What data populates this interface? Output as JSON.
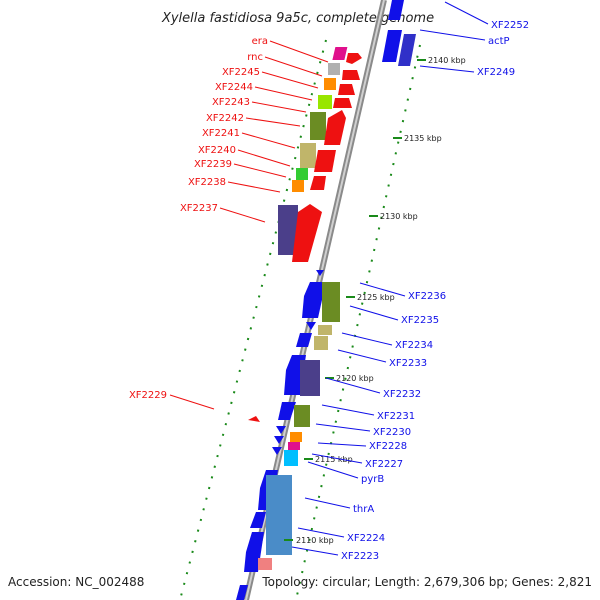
{
  "title": "Xylella fastidiosa 9a5c, complete genome",
  "footer": {
    "accession": "Accession: NC_002488",
    "summary": "Topology: circular; Length: 2,679,306 bp; Genes: 2,821"
  },
  "kbp_marks": [
    "2140 kbp",
    "2135 kbp",
    "2130 kbp",
    "2125 kbp",
    "2120 kbp",
    "2115 kbp",
    "2110 kbp"
  ],
  "left_labels": [
    "era",
    "rnc",
    "XF2245",
    "XF2244",
    "XF2243",
    "XF2242",
    "XF2241",
    "XF2240",
    "XF2239",
    "XF2238",
    "XF2237",
    "XF2229"
  ],
  "right_labels": [
    "XF2252",
    "actP",
    "XF2249",
    "XF2236",
    "XF2235",
    "XF2234",
    "XF2233",
    "XF2232",
    "XF2231",
    "XF2230",
    "XF2228",
    "XF2227",
    "pyrB",
    "thrA",
    "XF2224",
    "XF2223"
  ],
  "colors": {
    "forward": "#1010e8",
    "reverse": "#ee1111",
    "gc_skew": "#1a8a1a"
  }
}
